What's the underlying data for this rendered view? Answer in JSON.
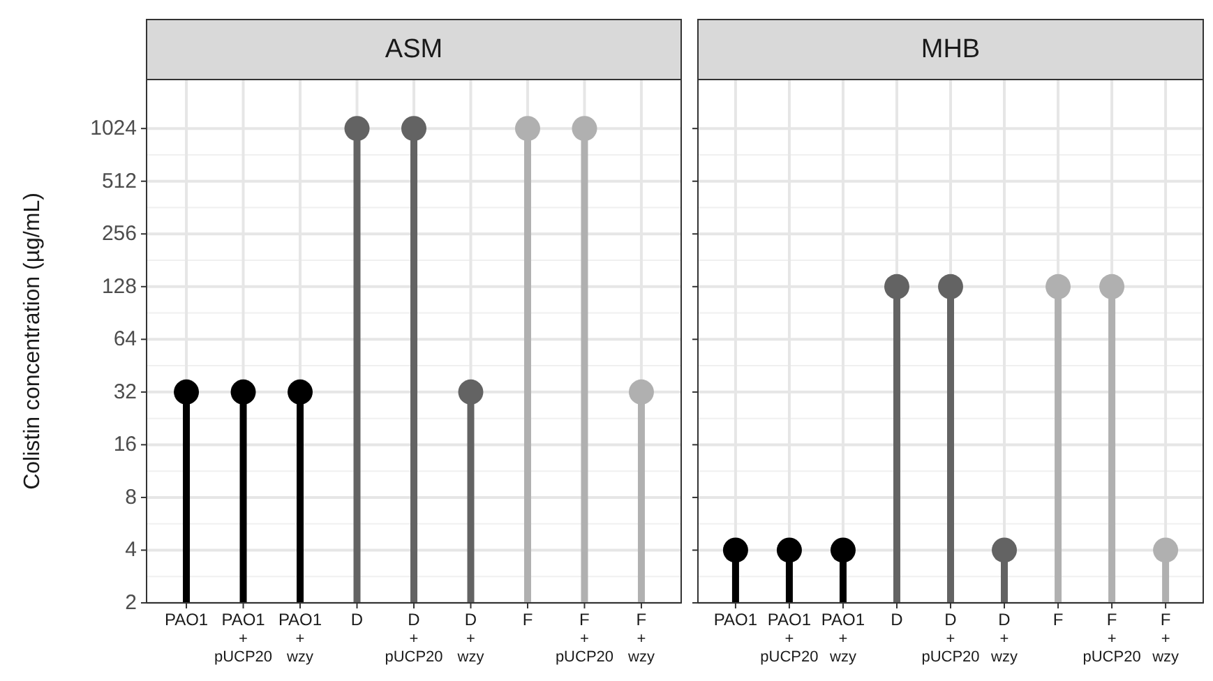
{
  "chart_data": [
    {
      "type": "lollipop",
      "title": "ASM",
      "ylabel": "Colistin concentration (µg/mL)",
      "categories": [
        "PAO1",
        "PAO1\n+\npUCP20",
        "PAO1\n+\nwzy",
        "D",
        "D\n+\npUCP20",
        "D\n+\nwzy",
        "F",
        "F\n+\npUCP20",
        "F\n+\nwzy"
      ],
      "values": [
        32,
        32,
        32,
        1024,
        1024,
        32,
        1024,
        1024,
        32
      ],
      "colors": [
        "#000000",
        "#000000",
        "#000000",
        "#636363",
        "#636363",
        "#636363",
        "#b0b0b0",
        "#b0b0b0",
        "#b0b0b0"
      ],
      "log": true,
      "ylim": [
        2,
        1950
      ],
      "yticks": [
        2,
        4,
        8,
        16,
        32,
        64,
        128,
        256,
        512,
        1024
      ],
      "grid": true,
      "marker": "circle"
    },
    {
      "type": "lollipop",
      "title": "MHB",
      "categories": [
        "PAO1",
        "PAO1\n+\npUCP20",
        "PAO1\n+\nwzy",
        "D",
        "D\n+\npUCP20",
        "D\n+\nwzy",
        "F",
        "F\n+\npUCP20",
        "F\n+\nwzy"
      ],
      "values": [
        4,
        4,
        4,
        128,
        128,
        4,
        128,
        128,
        4
      ],
      "colors": [
        "#000000",
        "#000000",
        "#000000",
        "#636363",
        "#636363",
        "#636363",
        "#b0b0b0",
        "#b0b0b0",
        "#b0b0b0"
      ],
      "log": true,
      "ylim": [
        2,
        1950
      ],
      "yticks": [
        2,
        4,
        8,
        16,
        32,
        64,
        128,
        256,
        512,
        1024
      ],
      "grid": true,
      "marker": "circle",
      "tick_labels": "x"
    }
  ]
}
